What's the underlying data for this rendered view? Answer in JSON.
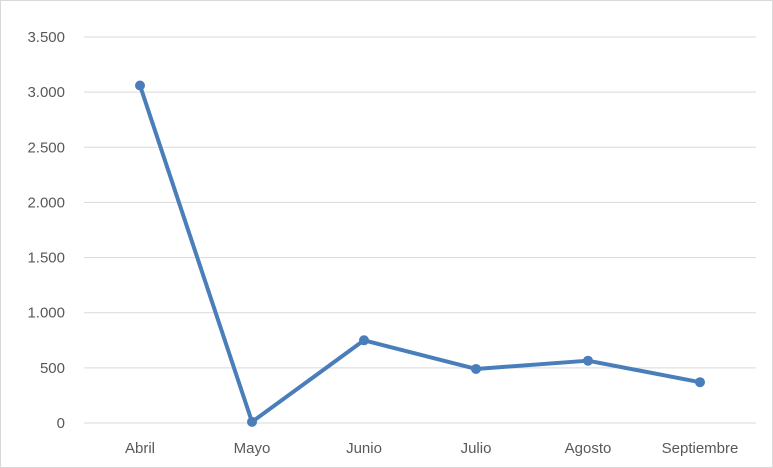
{
  "chart_data": {
    "type": "line",
    "categories": [
      "Abril",
      "Mayo",
      "Junio",
      "Julio",
      "Agosto",
      "Septiembre"
    ],
    "series": [
      {
        "values": [
          3060,
          10,
          750,
          490,
          565,
          370
        ]
      }
    ],
    "ylim": [
      0,
      3500
    ],
    "yticks": [
      0,
      500,
      1000,
      1500,
      2000,
      2500,
      3000,
      3500
    ],
    "ytick_labels": [
      "0",
      "500",
      "1.000",
      "1.500",
      "2.000",
      "2.500",
      "3.000",
      "3.500"
    ],
    "grid": true,
    "legend": "none",
    "colors": {
      "series": "#4a7ebb",
      "gridline": "#d9d9d9",
      "tick_text": "#595959"
    }
  }
}
